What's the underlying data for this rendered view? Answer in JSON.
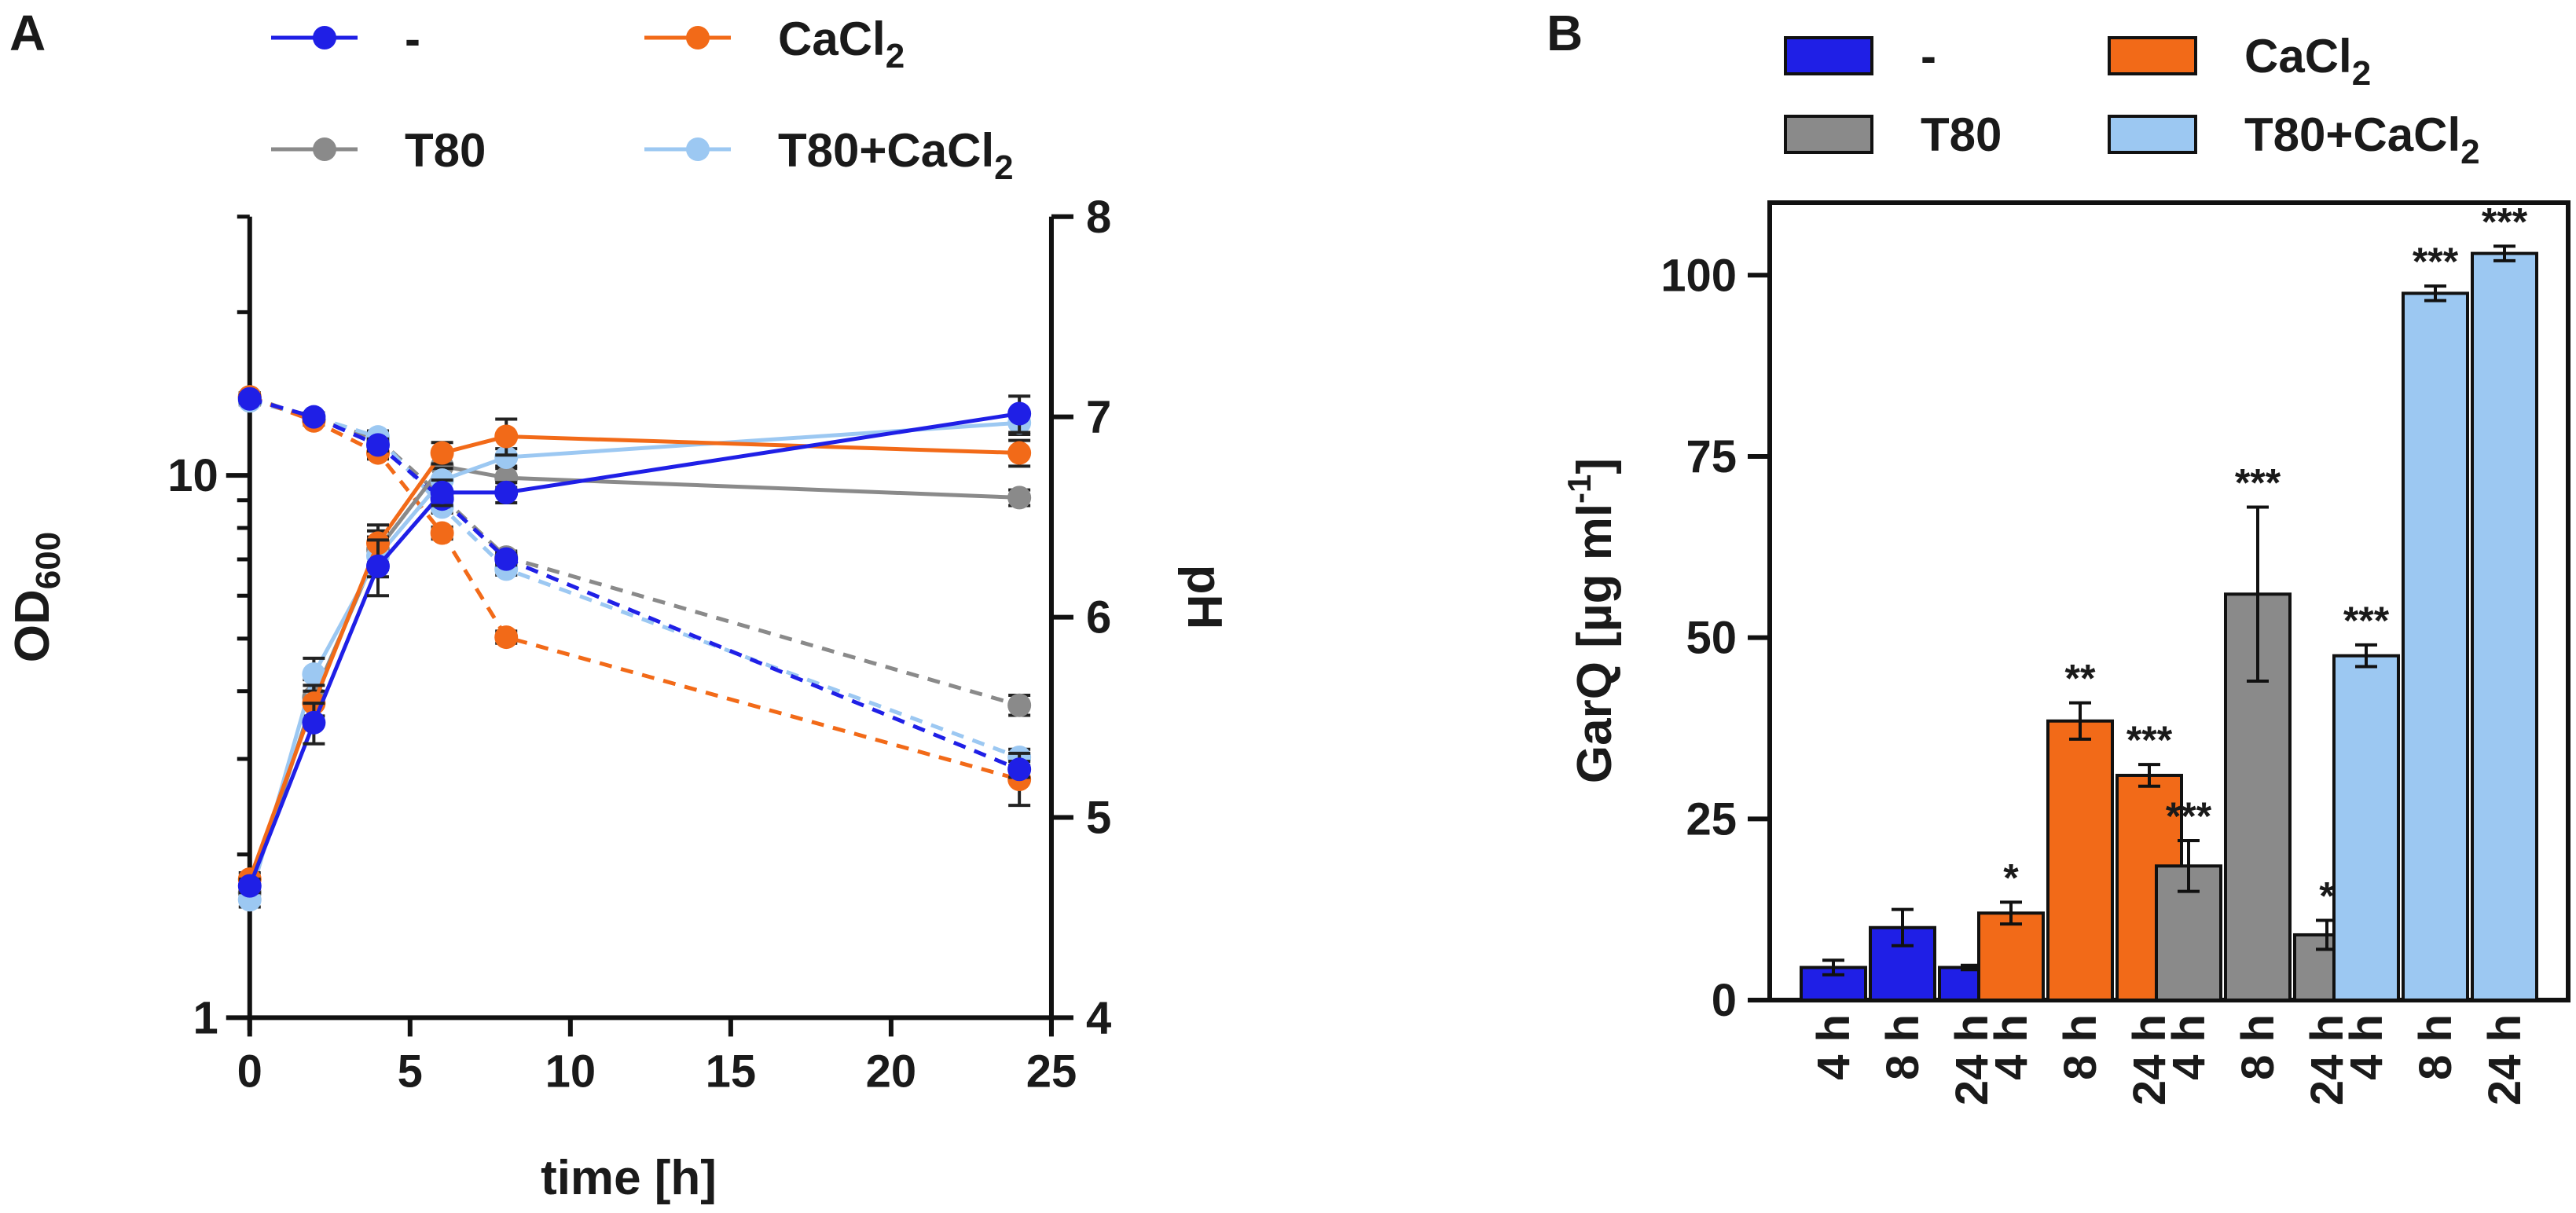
{
  "figure": {
    "panel_a_label": "A",
    "panel_b_label": "B"
  },
  "colors": {
    "none": "#1f1fe6",
    "cacl2": "#f26a18",
    "t80": "#8a8a8a",
    "t80cacl2": "#9cc8f2",
    "axis": "#111111"
  },
  "legend_a": [
    {
      "key": "none",
      "label": "-"
    },
    {
      "key": "cacl2",
      "label": "CaCl",
      "sub": "2"
    },
    {
      "key": "t80",
      "label": "T80"
    },
    {
      "key": "t80cacl2",
      "label": "T80+CaCl",
      "sub": "2"
    }
  ],
  "legend_b": [
    {
      "key": "none",
      "label": "-"
    },
    {
      "key": "cacl2",
      "label": "CaCl",
      "sub": "2"
    },
    {
      "key": "t80",
      "label": "T80"
    },
    {
      "key": "t80cacl2",
      "label": "T80+CaCl",
      "sub": "2"
    }
  ],
  "chart_data": [
    {
      "type": "line",
      "panel": "A",
      "xlabel": "time [h]",
      "ylabel_left": "OD",
      "ylabel_left_sub": "600",
      "ylabel_right": "pH",
      "xlim": [
        0,
        25
      ],
      "ylim_left": [
        1,
        30
      ],
      "yscale_left": "log",
      "ylim_right": [
        4,
        8
      ],
      "x_ticks": [
        0,
        5,
        10,
        15,
        20,
        25
      ],
      "y_left_ticks": [
        1,
        10
      ],
      "y_right_ticks": [
        4,
        5,
        6,
        7,
        8
      ],
      "od_series": [
        {
          "key": "none",
          "name": "-",
          "x": [
            0,
            2,
            4,
            6,
            8,
            24
          ],
          "y": [
            1.75,
            3.5,
            6.8,
            9.3,
            9.3,
            13.0
          ],
          "err": [
            0.05,
            0.3,
            0.8,
            0.5,
            0.4,
            1.0
          ]
        },
        {
          "key": "cacl2",
          "name": "CaCl2",
          "x": [
            0,
            2,
            4,
            6,
            8,
            24
          ],
          "y": [
            1.8,
            3.8,
            7.5,
            11.0,
            11.8,
            11.0
          ],
          "err": [
            0.05,
            0.3,
            0.6,
            0.5,
            0.9,
            0.6
          ]
        },
        {
          "key": "t80",
          "name": "T80",
          "x": [
            0,
            2,
            4,
            6,
            8,
            24
          ],
          "y": [
            1.7,
            3.9,
            7.3,
            10.4,
            9.9,
            9.1
          ],
          "err": [
            0.05,
            0.3,
            0.6,
            0.5,
            0.4,
            0.3
          ]
        },
        {
          "key": "t80cacl2",
          "name": "T80+CaCl2",
          "x": [
            0,
            2,
            4,
            6,
            8,
            24
          ],
          "y": [
            1.65,
            4.3,
            7.1,
            9.8,
            10.8,
            12.5
          ],
          "err": [
            0.05,
            0.3,
            0.6,
            0.5,
            0.4,
            0.6
          ]
        }
      ],
      "ph_series": [
        {
          "key": "none",
          "name": "-",
          "x": [
            0,
            2,
            4,
            6,
            8,
            24
          ],
          "y": [
            7.09,
            7.0,
            6.86,
            6.59,
            6.29,
            5.24
          ],
          "err": [
            0.02,
            0.02,
            0.03,
            0.03,
            0.03,
            0.04
          ]
        },
        {
          "key": "cacl2",
          "name": "CaCl2",
          "x": [
            0,
            2,
            4,
            6,
            8,
            24
          ],
          "y": [
            7.1,
            6.98,
            6.82,
            6.42,
            5.9,
            5.19
          ],
          "err": [
            0.02,
            0.02,
            0.03,
            0.03,
            0.03,
            0.13
          ]
        },
        {
          "key": "t80",
          "name": "T80",
          "x": [
            0,
            2,
            4,
            6,
            8,
            24
          ],
          "y": [
            7.1,
            6.99,
            6.89,
            6.6,
            6.3,
            5.56
          ],
          "err": [
            0.02,
            0.02,
            0.03,
            0.03,
            0.03,
            0.05
          ]
        },
        {
          "key": "t80cacl2",
          "name": "T80+CaCl2",
          "x": [
            0,
            2,
            4,
            6,
            8,
            24
          ],
          "y": [
            7.08,
            7.0,
            6.9,
            6.55,
            6.24,
            5.3
          ],
          "err": [
            0.02,
            0.02,
            0.03,
            0.03,
            0.03,
            0.04
          ]
        }
      ]
    },
    {
      "type": "bar",
      "panel": "B",
      "ylabel": "GarQ [µg ml",
      "ylabel_sup": "-1",
      "ylabel_end": "]",
      "ylim": [
        0,
        110
      ],
      "y_ticks": [
        0,
        25,
        50,
        75,
        100
      ],
      "groups": [
        {
          "key": "none",
          "name": "-",
          "bars": [
            {
              "label": "4 h",
              "value": 4.5,
              "err": 1.0,
              "sig": ""
            },
            {
              "label": "8 h",
              "value": 10.0,
              "err": 2.5,
              "sig": ""
            },
            {
              "label": "24 h",
              "value": 4.5,
              "err": 0.3,
              "sig": ""
            }
          ]
        },
        {
          "key": "cacl2",
          "name": "CaCl2",
          "bars": [
            {
              "label": "4 h",
              "value": 12.0,
              "err": 1.5,
              "sig": "*"
            },
            {
              "label": "8 h",
              "value": 38.5,
              "err": 2.5,
              "sig": "**"
            },
            {
              "label": "24 h",
              "value": 31.0,
              "err": 1.5,
              "sig": "***"
            }
          ]
        },
        {
          "key": "t80",
          "name": "T80",
          "bars": [
            {
              "label": "4 h",
              "value": 18.5,
              "err": 3.5,
              "sig": "***"
            },
            {
              "label": "8 h",
              "value": 56.0,
              "err": 12.0,
              "sig": "***"
            },
            {
              "label": "24 h",
              "value": 9.0,
              "err": 2.0,
              "sig": "*"
            }
          ]
        },
        {
          "key": "t80cacl2",
          "name": "T80+CaCl2",
          "bars": [
            {
              "label": "4 h",
              "value": 47.5,
              "err": 1.5,
              "sig": "***"
            },
            {
              "label": "8 h",
              "value": 97.5,
              "err": 1.0,
              "sig": "***"
            },
            {
              "label": "24 h",
              "value": 103.0,
              "err": 1.0,
              "sig": "***"
            }
          ]
        }
      ]
    }
  ]
}
